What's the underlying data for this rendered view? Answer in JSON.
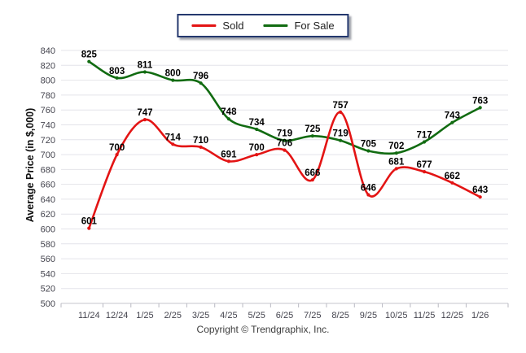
{
  "chart_data": {
    "type": "line",
    "categories": [
      "11/24",
      "12/24",
      "1/25",
      "2/25",
      "3/25",
      "4/25",
      "5/25",
      "6/25",
      "7/25",
      "8/25",
      "9/25",
      "10/25",
      "11/25",
      "12/25",
      "1/26"
    ],
    "series": [
      {
        "name": "Sold",
        "color": "#e31414",
        "values": [
          601,
          700,
          747,
          714,
          710,
          691,
          700,
          706,
          666,
          757,
          646,
          681,
          677,
          662,
          643
        ]
      },
      {
        "name": "For Sale",
        "color": "#116b11",
        "values": [
          825,
          803,
          811,
          800,
          796,
          748,
          734,
          719,
          725,
          719,
          705,
          702,
          717,
          743,
          763
        ]
      }
    ],
    "ylabel": "Average Price (in $,000)",
    "ylim": [
      500,
      840
    ],
    "ytick_step": 20,
    "grid": true,
    "smooth": true,
    "data_labels": true,
    "legend_position": "top-center"
  },
  "footer": {
    "copyright": "Copyright © Trendgraphix, Inc."
  },
  "colors": {
    "grid": "#e4e4ea",
    "axis": "#c6c6cc",
    "tick_mark": "#b9b9c2",
    "tick_text": "#45454f",
    "data_label": "#000000",
    "legend_border": "#24386e"
  }
}
